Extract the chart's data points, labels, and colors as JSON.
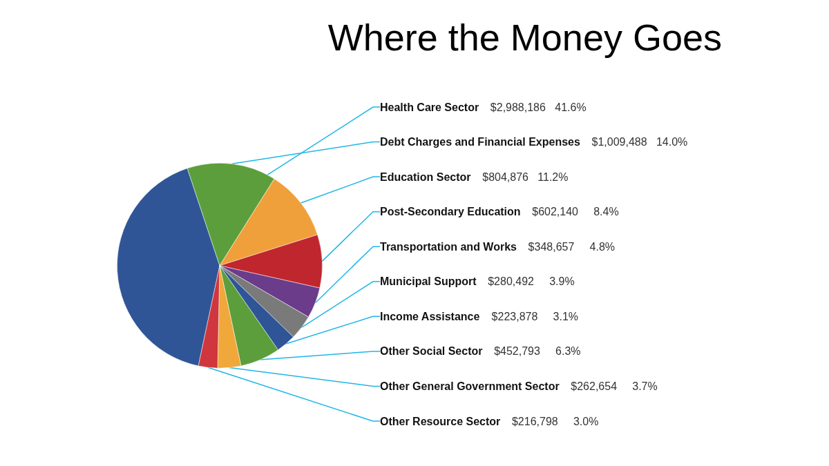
{
  "chart_data": {
    "type": "pie",
    "title": "Where the Money Goes",
    "categories": [
      "Health Care Sector",
      "Debt Charges and Financial Expenses",
      "Education Sector",
      "Post-Secondary Education",
      "Transportation and Works",
      "Municipal Support",
      "Income Assistance",
      "Other Social Sector",
      "Other General Government Sector",
      "Other Resource Sector"
    ],
    "values": [
      2988186,
      1009488,
      804876,
      602140,
      348657,
      280492,
      223878,
      452793,
      262654,
      216798
    ],
    "value_labels": [
      "$2,988,186   41.6%",
      "$1,009,488   14.0%",
      "$804,876   11.2%",
      "$602,140     8.4%",
      "$348,657     4.8%",
      "$280,492     3.9%",
      "$223,878     3.1%",
      "$452,793     6.3%",
      "$262,654     3.7%",
      "$216,798     3.0%"
    ],
    "colors": [
      "#2f5597",
      "#5c9e3c",
      "#f0a03a",
      "#c0262d",
      "#6a3c8a",
      "#7a7a7a",
      "#2f5597",
      "#5c9e3c",
      "#f0a83a",
      "#d0363d"
    ],
    "legend": false
  }
}
